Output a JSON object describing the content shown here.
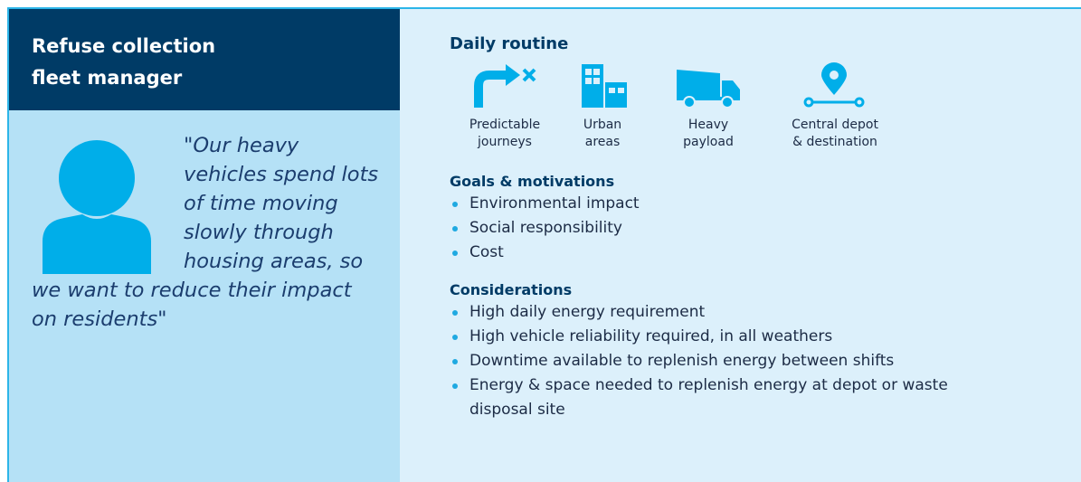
{
  "persona": {
    "title_lines": [
      "Refuse collection",
      "fleet manager"
    ],
    "quote": "\"Our heavy vehicles spend lots of time moving slowly through housing areas, so we want to reduce their impact on residents\""
  },
  "daily_routine": {
    "heading": "Daily routine",
    "items": [
      {
        "lines": [
          "Predictable",
          "journeys"
        ]
      },
      {
        "lines": [
          "Urban",
          "areas"
        ]
      },
      {
        "lines": [
          "Heavy",
          "payload"
        ]
      },
      {
        "lines": [
          "Central depot",
          "& destination"
        ]
      }
    ]
  },
  "goals": {
    "heading": "Goals & motivations",
    "items": [
      "Environmental impact",
      "Social responsibility",
      "Cost"
    ]
  },
  "considerations": {
    "heading": "Considerations",
    "items": [
      "High daily energy requirement",
      "High vehicle reliability required, in all weathers",
      "Downtime available to replenish energy between shifts",
      "Energy & space needed to replenish energy at depot or waste disposal site"
    ]
  }
}
